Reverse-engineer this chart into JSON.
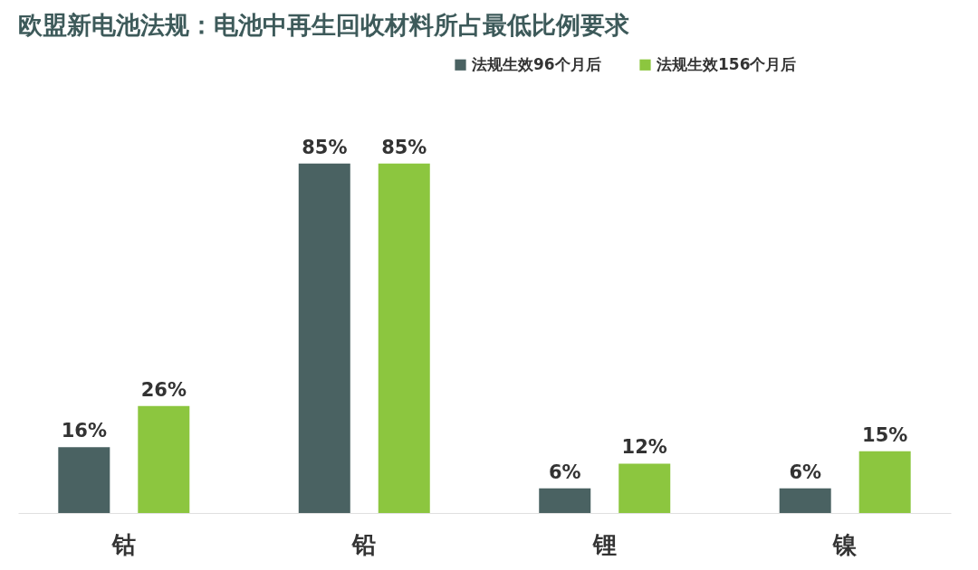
{
  "chart_data": {
    "type": "bar",
    "title": "欧盟新电池法规：电池中再生回收材料所占最低比例要求",
    "categories": [
      "钴",
      "铅",
      "锂",
      "镍"
    ],
    "series": [
      {
        "name": "法规生效96个月后",
        "color": "#4a6262",
        "values": [
          16,
          85,
          6,
          6
        ],
        "value_labels": [
          "16%",
          "85%",
          "6%",
          "6%"
        ]
      },
      {
        "name": "法规生效156个月后",
        "color": "#8cc63f",
        "values": [
          26,
          85,
          12,
          15
        ],
        "value_labels": [
          "26%",
          "85%",
          "12%",
          "15%"
        ]
      }
    ],
    "legend": "top right",
    "grid": false
  }
}
